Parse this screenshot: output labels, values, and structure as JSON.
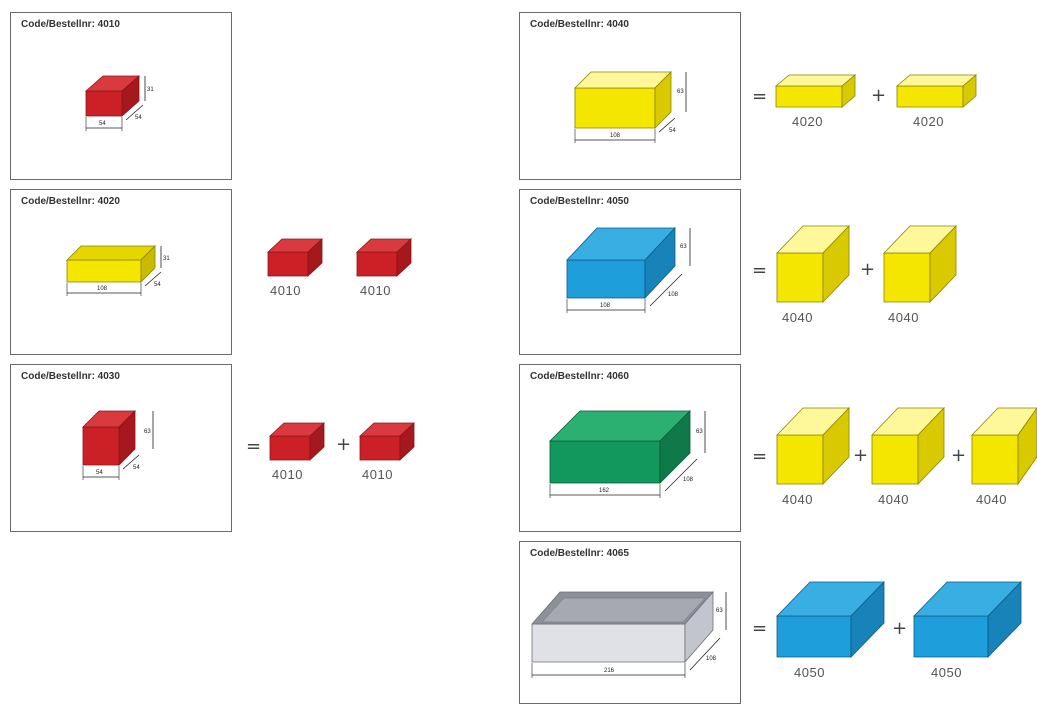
{
  "colors": {
    "red": "#cc2027",
    "yellow": "#f5e600",
    "blue": "#1e9fdc",
    "green": "#12985c",
    "grey": "#c9ccd3"
  },
  "panels": [
    {
      "key": "p4010",
      "title": "Code/Bestellnr: 4010",
      "dims": [
        "54",
        "31",
        "54"
      ]
    },
    {
      "key": "p4020",
      "title": "Code/Bestellnr: 4020",
      "dims": [
        "108",
        "31",
        "54"
      ]
    },
    {
      "key": "p4030",
      "title": "Code/Bestellnr: 4030",
      "dims": [
        "54",
        "63",
        "54"
      ]
    },
    {
      "key": "p4040",
      "title": "Code/Bestellnr: 4040",
      "dims": [
        "108",
        "63",
        "54"
      ]
    },
    {
      "key": "p4050",
      "title": "Code/Bestellnr: 4050",
      "dims": [
        "108",
        "63",
        "108"
      ]
    },
    {
      "key": "p4060",
      "title": "Code/Bestellnr: 4060",
      "dims": [
        "162",
        "63",
        "108"
      ]
    },
    {
      "key": "p4065",
      "title": "Code/Bestellnr: 4065",
      "dims": [
        "216",
        "63",
        "108"
      ]
    }
  ],
  "equivalents": {
    "e4020": [
      "4010",
      "4010"
    ],
    "e4030": [
      "4010",
      "4010"
    ],
    "e4040": [
      "4020",
      "4020"
    ],
    "e4050": [
      "4040",
      "4040"
    ],
    "e4060": [
      "4040",
      "4040",
      "4040"
    ],
    "e4065": [
      "4050",
      "4050"
    ]
  },
  "symbols": {
    "equals": "=",
    "plus": "+"
  }
}
